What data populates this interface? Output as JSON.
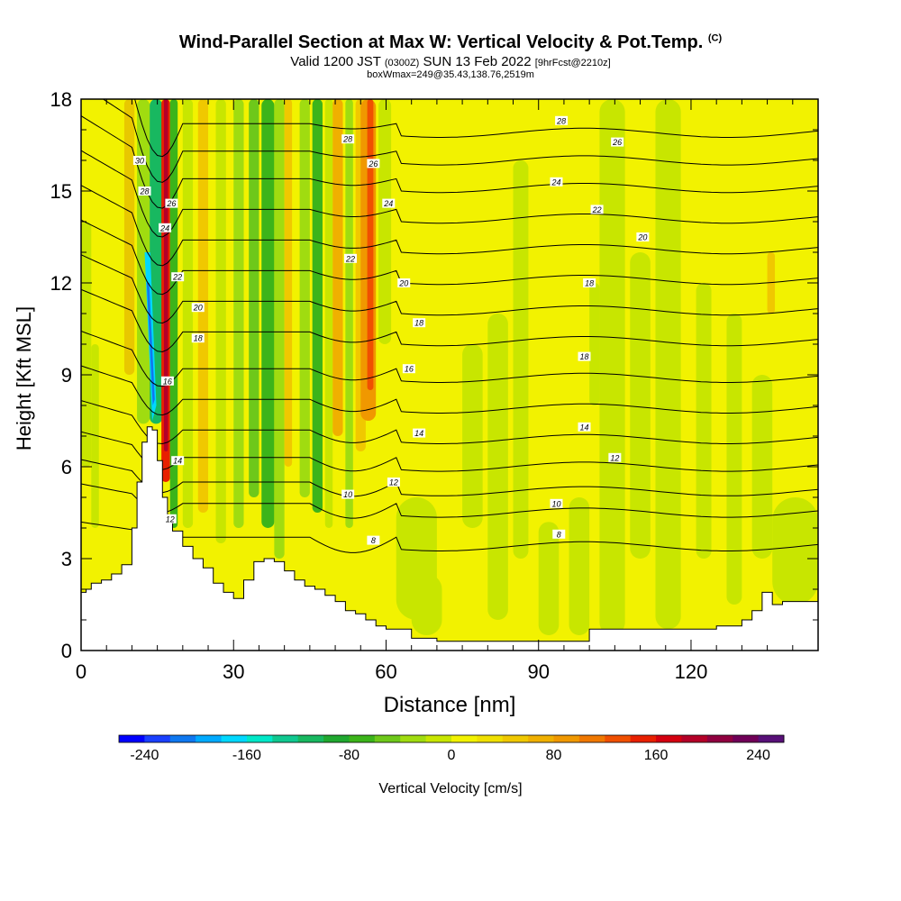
{
  "title": "Wind-Parallel Section at Max W: Vertical Velocity & Pot.Temp.",
  "title_copyright": "(C)",
  "valid_line": {
    "prefix": "Valid 1200 JST",
    "utc": "(0300Z)",
    "date": "SUN 13 Feb 2022",
    "fcst": "[9hrFcst@2210z]"
  },
  "box_line": "boxWmax=249@35.43,138.76,2519m",
  "colors": {
    "background_field": "#f2f200",
    "terrain": "#ffffff",
    "contour": "#000000"
  },
  "chart_data": {
    "type": "heatmap",
    "xlabel": "Distance [nm]",
    "ylabel": "Height [Kft MSL]",
    "xlim": [
      0,
      145
    ],
    "ylim": [
      0,
      18
    ],
    "x_ticks": [
      "0",
      "30",
      "60",
      "90",
      "120"
    ],
    "x_tick_values": [
      0,
      30,
      60,
      90,
      120
    ],
    "y_ticks": [
      "0",
      "3",
      "6",
      "9",
      "12",
      "15",
      "18"
    ],
    "y_tick_values": [
      0,
      3,
      6,
      9,
      12,
      15,
      18
    ],
    "terrain_profile": {
      "x": [
        0,
        1,
        2,
        4,
        6,
        8,
        10,
        11,
        12,
        13,
        14,
        15,
        16,
        17,
        18,
        20,
        22,
        24,
        26,
        28,
        30,
        32,
        34,
        36,
        38,
        40,
        42,
        44,
        46,
        48,
        50,
        52,
        54,
        56,
        58,
        60,
        65,
        70,
        75,
        80,
        85,
        90,
        95,
        100,
        105,
        110,
        115,
        120,
        125,
        130,
        132,
        134,
        136,
        138,
        140,
        145
      ],
      "height": [
        1.9,
        2.0,
        2.2,
        2.3,
        2.5,
        2.8,
        4.0,
        5.5,
        6.8,
        7.3,
        7.2,
        6.2,
        5.0,
        4.2,
        3.9,
        3.4,
        3.0,
        2.7,
        2.2,
        1.9,
        1.7,
        2.3,
        2.9,
        3.0,
        2.9,
        2.6,
        2.3,
        2.1,
        2.0,
        1.8,
        1.6,
        1.3,
        1.2,
        1.0,
        0.8,
        0.7,
        0.4,
        0.3,
        0.3,
        0.3,
        0.3,
        0.3,
        0.3,
        0.7,
        0.7,
        0.7,
        0.7,
        0.7,
        0.8,
        1.0,
        1.3,
        1.9,
        1.5,
        1.6,
        1.6,
        1.6
      ]
    },
    "series": [
      {
        "name": "vertical_velocity",
        "units": "cm/s",
        "max": 249
      },
      {
        "name": "potential_temperature",
        "contour_labels": [
          "30",
          "28",
          "26",
          "24",
          "22",
          "20",
          "18",
          "16",
          "14",
          "12",
          "10",
          "8"
        ]
      }
    ],
    "contour_labels": [
      {
        "text": "30",
        "x": 11.5,
        "y": 16.0
      },
      {
        "text": "28",
        "x": 12.5,
        "y": 15.0
      },
      {
        "text": "26",
        "x": 17.8,
        "y": 14.6
      },
      {
        "text": "24",
        "x": 16.5,
        "y": 13.8
      },
      {
        "text": "22",
        "x": 19.0,
        "y": 12.2
      },
      {
        "text": "20",
        "x": 23.0,
        "y": 11.2
      },
      {
        "text": "18",
        "x": 23.0,
        "y": 10.2
      },
      {
        "text": "16",
        "x": 17.0,
        "y": 8.8
      },
      {
        "text": "14",
        "x": 19.0,
        "y": 6.2
      },
      {
        "text": "12",
        "x": 17.5,
        "y": 4.3
      },
      {
        "text": "28",
        "x": 52.5,
        "y": 16.7
      },
      {
        "text": "26",
        "x": 57.5,
        "y": 15.9
      },
      {
        "text": "24",
        "x": 60.5,
        "y": 14.6
      },
      {
        "text": "22",
        "x": 53.0,
        "y": 12.8
      },
      {
        "text": "20",
        "x": 63.5,
        "y": 12.0
      },
      {
        "text": "18",
        "x": 66.5,
        "y": 10.7
      },
      {
        "text": "16",
        "x": 64.5,
        "y": 9.2
      },
      {
        "text": "14",
        "x": 66.5,
        "y": 7.1
      },
      {
        "text": "12",
        "x": 61.5,
        "y": 5.5
      },
      {
        "text": "10",
        "x": 52.5,
        "y": 5.1
      },
      {
        "text": "8",
        "x": 57.5,
        "y": 3.6
      },
      {
        "text": "28",
        "x": 94.5,
        "y": 17.3
      },
      {
        "text": "26",
        "x": 105.5,
        "y": 16.6
      },
      {
        "text": "24",
        "x": 93.5,
        "y": 15.3
      },
      {
        "text": "22",
        "x": 101.5,
        "y": 14.4
      },
      {
        "text": "20",
        "x": 110.5,
        "y": 13.5
      },
      {
        "text": "18",
        "x": 100.0,
        "y": 12.0
      },
      {
        "text": "18",
        "x": 99.0,
        "y": 9.6
      },
      {
        "text": "14",
        "x": 99.0,
        "y": 7.3
      },
      {
        "text": "12",
        "x": 105.0,
        "y": 6.3
      },
      {
        "text": "10",
        "x": 93.5,
        "y": 4.8
      },
      {
        "text": "8",
        "x": 94.0,
        "y": 3.8
      }
    ]
  },
  "colorbar": {
    "label": "Vertical Velocity [cm/s]",
    "tick_labels": [
      "-240",
      "-160",
      "-80",
      "0",
      "80",
      "160",
      "240"
    ],
    "tick_values": [
      -240,
      -160,
      -80,
      0,
      80,
      160,
      240
    ],
    "colors": [
      "#0000ff",
      "#1a40ff",
      "#0f78f0",
      "#00aaff",
      "#00d8ff",
      "#00e8c8",
      "#10c890",
      "#18b860",
      "#20a830",
      "#3cb41a",
      "#6ec81a",
      "#a0dc10",
      "#c8e600",
      "#f2f200",
      "#f0e000",
      "#f0c800",
      "#f0b000",
      "#f09800",
      "#f07800",
      "#f05000",
      "#e82000",
      "#d40010",
      "#b40028",
      "#900040",
      "#700058",
      "#581078"
    ]
  }
}
